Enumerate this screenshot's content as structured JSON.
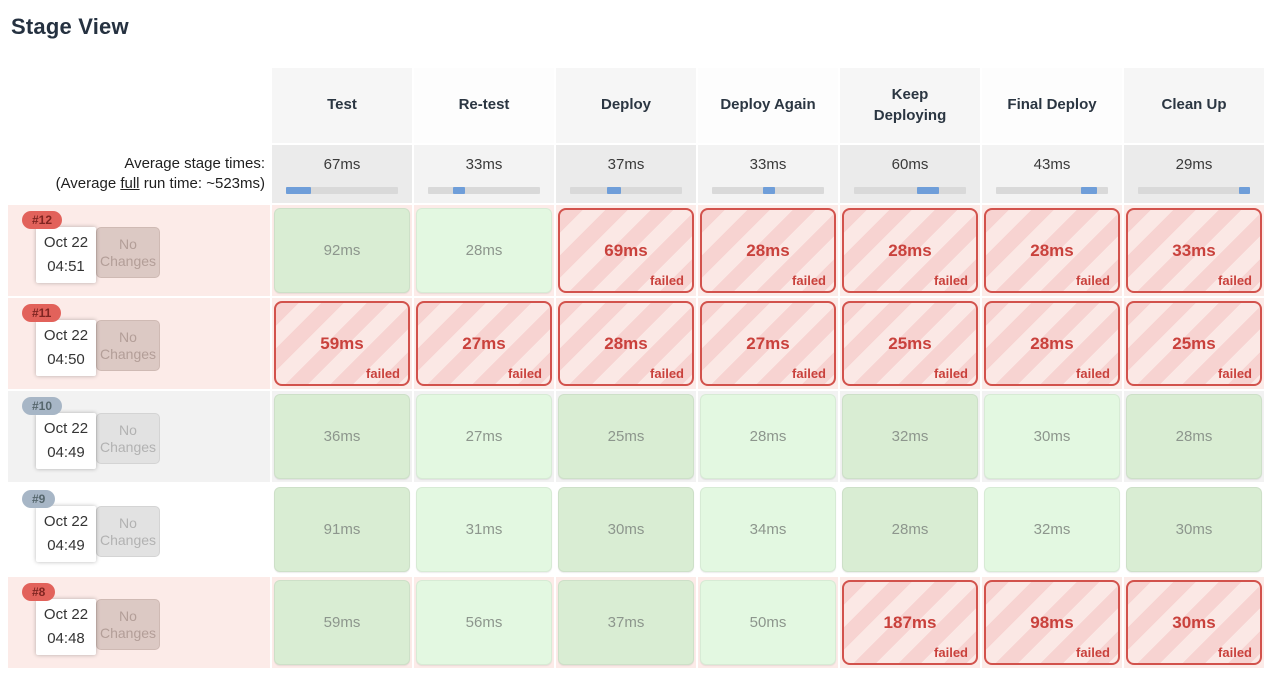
{
  "title": "Stage View",
  "table": {
    "stages": [
      "Test",
      "Re-test",
      "Deploy",
      "Deploy Again",
      "Keep Deploying",
      "Final Deploy",
      "Clean Up"
    ],
    "averages": {
      "label_line1": "Average stage times:",
      "line2_prefix": "(Average ",
      "line2_underline": "full",
      "line2_suffix": " run time: ~523ms)",
      "times": [
        "67ms",
        "33ms",
        "37ms",
        "33ms",
        "60ms",
        "43ms",
        "29ms"
      ],
      "ms": [
        67,
        33,
        37,
        33,
        60,
        43,
        29
      ]
    },
    "failed_label": "failed",
    "runs": [
      {
        "id": "#12",
        "date": "Oct 22",
        "time": "04:51",
        "changes": "No Changes",
        "status": "failed",
        "cells": [
          {
            "value": "92ms",
            "status": "success"
          },
          {
            "value": "28ms",
            "status": "success"
          },
          {
            "value": "69ms",
            "status": "failed"
          },
          {
            "value": "28ms",
            "status": "failed"
          },
          {
            "value": "28ms",
            "status": "failed"
          },
          {
            "value": "28ms",
            "status": "failed"
          },
          {
            "value": "33ms",
            "status": "failed"
          }
        ]
      },
      {
        "id": "#11",
        "date": "Oct 22",
        "time": "04:50",
        "changes": "No Changes",
        "status": "failed",
        "cells": [
          {
            "value": "59ms",
            "status": "failed"
          },
          {
            "value": "27ms",
            "status": "failed"
          },
          {
            "value": "28ms",
            "status": "failed"
          },
          {
            "value": "27ms",
            "status": "failed"
          },
          {
            "value": "25ms",
            "status": "failed"
          },
          {
            "value": "28ms",
            "status": "failed"
          },
          {
            "value": "25ms",
            "status": "failed"
          }
        ]
      },
      {
        "id": "#10",
        "date": "Oct 22",
        "time": "04:49",
        "changes": "No Changes",
        "status": "success",
        "row_shade": "gray",
        "cells": [
          {
            "value": "36ms",
            "status": "success"
          },
          {
            "value": "27ms",
            "status": "success"
          },
          {
            "value": "25ms",
            "status": "success"
          },
          {
            "value": "28ms",
            "status": "success"
          },
          {
            "value": "32ms",
            "status": "success"
          },
          {
            "value": "30ms",
            "status": "success"
          },
          {
            "value": "28ms",
            "status": "success"
          }
        ]
      },
      {
        "id": "#9",
        "date": "Oct 22",
        "time": "04:49",
        "changes": "No Changes",
        "status": "success",
        "row_shade": "white",
        "cells": [
          {
            "value": "91ms",
            "status": "success"
          },
          {
            "value": "31ms",
            "status": "success"
          },
          {
            "value": "30ms",
            "status": "success"
          },
          {
            "value": "34ms",
            "status": "success"
          },
          {
            "value": "28ms",
            "status": "success"
          },
          {
            "value": "32ms",
            "status": "success"
          },
          {
            "value": "30ms",
            "status": "success"
          }
        ]
      },
      {
        "id": "#8",
        "date": "Oct 22",
        "time": "04:48",
        "changes": "No Changes",
        "status": "failed",
        "cells": [
          {
            "value": "59ms",
            "status": "success"
          },
          {
            "value": "56ms",
            "status": "success"
          },
          {
            "value": "37ms",
            "status": "success"
          },
          {
            "value": "50ms",
            "status": "success"
          },
          {
            "value": "187ms",
            "status": "failed"
          },
          {
            "value": "98ms",
            "status": "failed"
          },
          {
            "value": "30ms",
            "status": "failed"
          }
        ]
      }
    ]
  },
  "colors": {
    "bar_blue": "#6f9ed9",
    "red_border": "#d2524c",
    "red_text": "#c9413c",
    "stripe_dark": "#f7d3d1",
    "stripe_light": "#fbe8e5",
    "green_dark": "#d9edd3",
    "green_light": "#e3f8e1",
    "row_failed_bg": "#fcebe8",
    "badge_failed_bg": "#e2625b",
    "badge_success_bg": "#a7b6c6"
  }
}
